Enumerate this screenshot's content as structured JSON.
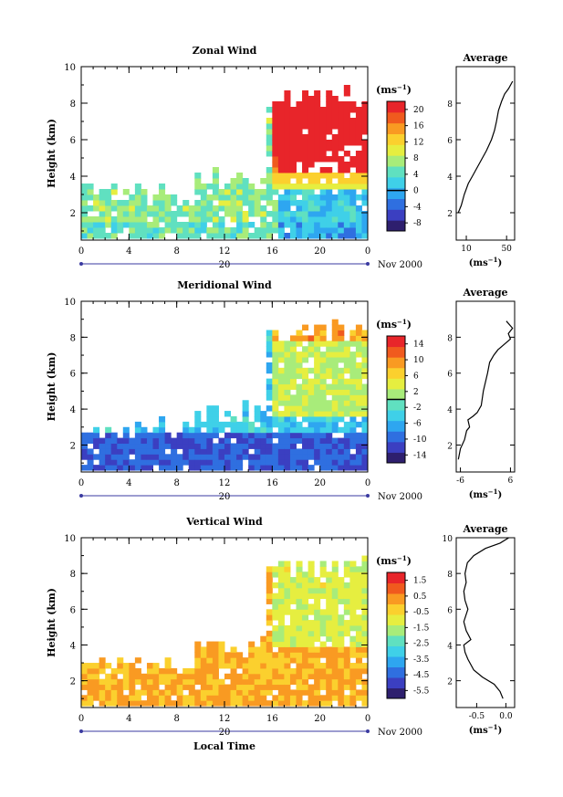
{
  "chart_data": [
    {
      "type": "heatmap",
      "title": "Zonal Wind",
      "xlabel": "",
      "ylabel": "Height (km)",
      "xlim": [
        0,
        24
      ],
      "ylim": [
        0.5,
        10
      ],
      "x_ticks": [
        "0",
        "4",
        "8",
        "12",
        "16",
        "20",
        "0"
      ],
      "y_ticks": [
        "2",
        "4",
        "6",
        "8",
        "10"
      ],
      "date_day": "20",
      "date_label": "Nov 2000",
      "colorbar": {
        "unit_base": "(ms",
        "unit_exp": "−1",
        "unit_close": ")",
        "ticks": [
          "20",
          "16",
          "12",
          "8",
          "4",
          "0",
          "-4",
          "-8"
        ],
        "tick_values": [
          20,
          16,
          12,
          8,
          4,
          0,
          -4,
          -8
        ],
        "range": [
          -10,
          22
        ],
        "marker": 0
      },
      "avg_profile": {
        "title": "Average",
        "xlabel_base": "(ms",
        "xlabel_exp": "−1",
        "xlabel_close": ")",
        "x_ticks": [
          "10",
          "50"
        ],
        "x_tick_values": [
          10,
          50
        ],
        "xlim": [
          0,
          58
        ],
        "y_ticks": [
          "2",
          "4",
          "6",
          "8"
        ],
        "points": [
          [
            2,
            2.0
          ],
          [
            5,
            2.4
          ],
          [
            8,
            3.0
          ],
          [
            12,
            3.6
          ],
          [
            16,
            4.0
          ],
          [
            20,
            4.4
          ],
          [
            25,
            4.9
          ],
          [
            30,
            5.4
          ],
          [
            35,
            6.0
          ],
          [
            38,
            6.5
          ],
          [
            40,
            7.0
          ],
          [
            42,
            7.6
          ],
          [
            45,
            8.1
          ],
          [
            48,
            8.5
          ],
          [
            52,
            8.8
          ],
          [
            56,
            9.2
          ]
        ]
      }
    },
    {
      "type": "heatmap",
      "title": "Meridional Wind",
      "xlabel": "",
      "ylabel": "Height (km)",
      "xlim": [
        0,
        24
      ],
      "ylim": [
        0.5,
        10
      ],
      "x_ticks": [
        "0",
        "4",
        "8",
        "12",
        "16",
        "20",
        "0"
      ],
      "y_ticks": [
        "2",
        "4",
        "6",
        "8",
        "10"
      ],
      "date_day": "20",
      "date_label": "Nov 2000",
      "colorbar": {
        "unit_base": "(ms",
        "unit_exp": "−1",
        "unit_close": ")",
        "ticks": [
          "14",
          "10",
          "6",
          "2",
          "-2",
          "-6",
          "-10",
          "-14"
        ],
        "tick_values": [
          14,
          10,
          6,
          2,
          -2,
          -6,
          -10,
          -14
        ],
        "range": [
          -16,
          16
        ],
        "marker": 0
      },
      "avg_profile": {
        "title": "Average",
        "xlabel_base": "(ms",
        "xlabel_exp": "−1",
        "xlabel_close": ")",
        "x_ticks": [
          "-6",
          "6"
        ],
        "x_tick_values": [
          -6,
          6
        ],
        "xlim": [
          -7,
          7
        ],
        "y_ticks": [
          "2",
          "4",
          "6",
          "8"
        ],
        "points": [
          [
            -6.5,
            1.2
          ],
          [
            -6,
            1.8
          ],
          [
            -5,
            2.3
          ],
          [
            -4.5,
            2.8
          ],
          [
            -3.8,
            3.0
          ],
          [
            -4.2,
            3.4
          ],
          [
            -3,
            3.6
          ],
          [
            -2,
            3.8
          ],
          [
            -1,
            4.2
          ],
          [
            -0.5,
            5.0
          ],
          [
            0.5,
            6.0
          ],
          [
            1,
            6.6
          ],
          [
            2,
            7.0
          ],
          [
            3,
            7.3
          ],
          [
            4.5,
            7.6
          ],
          [
            6,
            7.9
          ],
          [
            5.5,
            8.2
          ],
          [
            6.5,
            8.5
          ],
          [
            5,
            8.9
          ]
        ]
      }
    },
    {
      "type": "heatmap",
      "title": "Vertical Wind",
      "xlabel": "Local Time",
      "ylabel": "Height (km)",
      "xlim": [
        0,
        24
      ],
      "ylim": [
        0.5,
        10
      ],
      "x_ticks": [
        "0",
        "4",
        "8",
        "12",
        "16",
        "20",
        "0"
      ],
      "y_ticks": [
        "2",
        "4",
        "6",
        "8",
        "10"
      ],
      "date_day": "20",
      "date_label": "Nov 2000",
      "colorbar": {
        "unit_base": "(ms",
        "unit_exp": "−1",
        "unit_close": ")",
        "ticks": [
          "1.5",
          "0.5",
          "-0.5",
          "-1.5",
          "-2.5",
          "-3.5",
          "-4.5",
          "-5.5"
        ],
        "tick_values": [
          1.5,
          0.5,
          -0.5,
          -1.5,
          -2.5,
          -3.5,
          -4.5,
          -5.5
        ],
        "range": [
          -6,
          2
        ],
        "marker": null
      },
      "avg_profile": {
        "title": "Average",
        "xlabel_base": "(ms",
        "xlabel_exp": "−1",
        "xlabel_close": ")",
        "x_ticks": [
          "-0.5",
          "0.0"
        ],
        "x_tick_values": [
          -0.5,
          0.0
        ],
        "xlim": [
          -0.85,
          0.15
        ],
        "y_ticks": [
          "2",
          "4",
          "6",
          "8",
          "10"
        ],
        "points": [
          [
            -0.05,
            1.0
          ],
          [
            -0.1,
            1.4
          ],
          [
            -0.2,
            1.8
          ],
          [
            -0.4,
            2.2
          ],
          [
            -0.55,
            2.6
          ],
          [
            -0.65,
            3.2
          ],
          [
            -0.7,
            3.6
          ],
          [
            -0.72,
            4.0
          ],
          [
            -0.6,
            4.3
          ],
          [
            -0.68,
            4.8
          ],
          [
            -0.72,
            5.3
          ],
          [
            -0.65,
            6.0
          ],
          [
            -0.7,
            6.5
          ],
          [
            -0.72,
            7.0
          ],
          [
            -0.68,
            7.5
          ],
          [
            -0.7,
            8.0
          ],
          [
            -0.66,
            8.6
          ],
          [
            -0.55,
            9.0
          ],
          [
            -0.35,
            9.4
          ],
          [
            -0.1,
            9.7
          ],
          [
            0.05,
            10.0
          ]
        ]
      }
    }
  ]
}
